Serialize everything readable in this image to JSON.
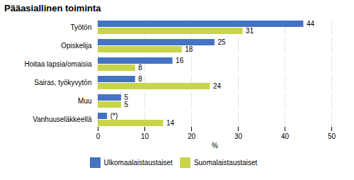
{
  "chart_data": {
    "type": "bar",
    "orientation": "horizontal",
    "title": "Pääasiallinen toiminta",
    "categories": [
      "Vanhuuseläkkeellä",
      "Muu",
      "Sairas, työkyvytön",
      "Hoitaa lapsia/omaisia",
      "Opiskelija",
      "Työtön"
    ],
    "series": [
      {
        "name": "Ulkomaalaistaustaiset",
        "color": "#4472C4",
        "values": [
          2,
          5,
          8,
          16,
          25,
          44
        ],
        "value_labels": [
          "(*)",
          "5",
          "8",
          "16",
          "25",
          "44"
        ]
      },
      {
        "name": "Suomalaistaustaiset",
        "color": "#C8D44A",
        "values": [
          14,
          5,
          24,
          8,
          18,
          31
        ],
        "value_labels": [
          "14",
          "5",
          "24",
          "8",
          "18",
          "31"
        ]
      }
    ],
    "xlabel": "%",
    "xlim": [
      0,
      50
    ],
    "xticks": [
      0,
      10,
      20,
      30,
      40,
      50
    ],
    "grid": true,
    "legend": "bottom",
    "data_labels": true
  }
}
